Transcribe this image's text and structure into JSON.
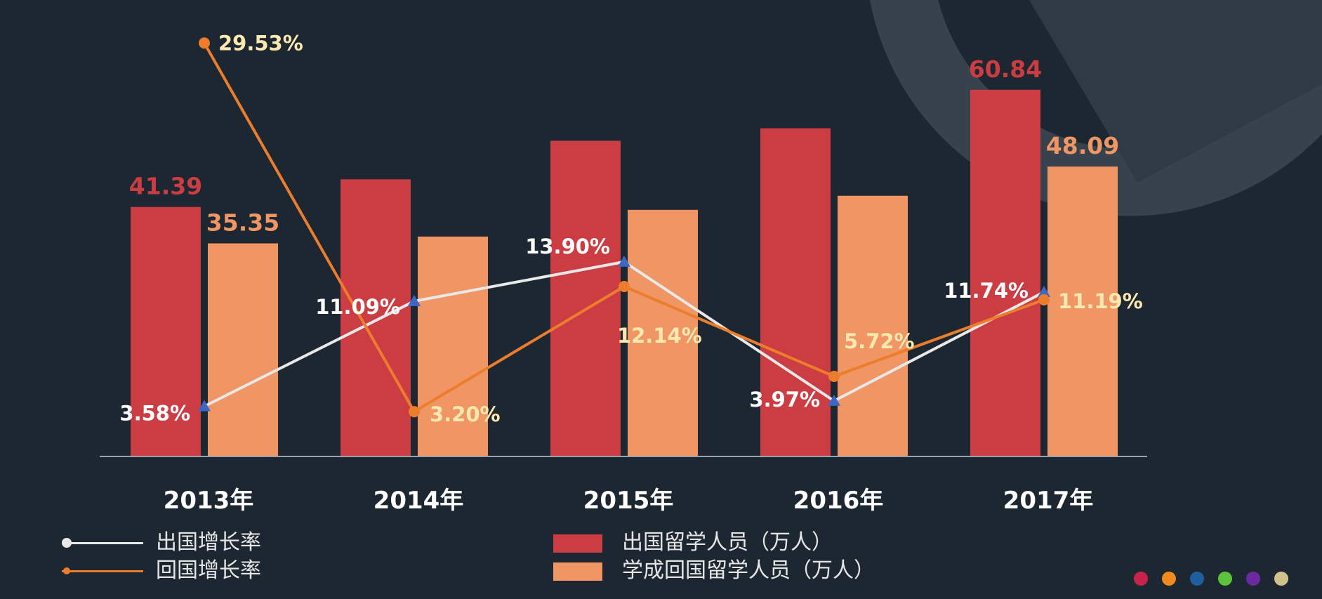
{
  "chart_data": {
    "type": "bar",
    "categories": [
      "2013年",
      "2014年",
      "2015年",
      "2016年",
      "2017年"
    ],
    "series": [
      {
        "name": "出国留学人员（万人）",
        "kind": "bar",
        "color": "#cb3d42",
        "values": [
          41.39,
          45.98,
          52.37,
          54.45,
          60.84
        ],
        "labels": [
          "41.39",
          "",
          "",
          "",
          "60.84"
        ]
      },
      {
        "name": "学成回国留学人员（万人）",
        "kind": "bar",
        "color": "#ef9664",
        "values": [
          35.35,
          36.48,
          40.91,
          43.25,
          48.09
        ],
        "labels": [
          "35.35",
          "",
          "",
          "",
          "48.09"
        ]
      },
      {
        "name": "出国增长率",
        "kind": "line",
        "color": "#e8e8e8",
        "marker_color": "#3a68c4",
        "values": [
          3.58,
          11.09,
          13.9,
          3.97,
          11.74
        ],
        "labels": [
          "3.58%",
          "11.09%",
          "13.90%",
          "3.97%",
          "11.74%"
        ]
      },
      {
        "name": "回国增长率",
        "kind": "line",
        "color": "#ec7d2d",
        "values": [
          29.53,
          3.2,
          12.14,
          5.72,
          11.19
        ],
        "labels": [
          "29.53%",
          "3.20%",
          "12.14%",
          "5.72%",
          "11.19%"
        ]
      }
    ],
    "bar_ylim": [
      0,
      72
    ],
    "line_ylim": [
      0,
      31
    ],
    "grid": false,
    "legend_position": "bottom"
  },
  "legend": {
    "line1": "出国增长率",
    "line2": "回国增长率",
    "bar1": "出国留学人员（万人）",
    "bar2": "学成回国留学人员（万人）"
  },
  "colors": {
    "background": "#1d2731",
    "outbound_bar": "#cb3d42",
    "return_bar": "#ef9664",
    "outbound_line": "#e8e8e8",
    "return_line": "#ec7d2d",
    "triangle_marker": "#3a68c4",
    "outbound_label": "#ffffff",
    "return_label": "#fde8b0"
  },
  "page_dots": [
    "#c9234c",
    "#f08a1e",
    "#1e5fa0",
    "#5cc33c",
    "#6c2aa0",
    "#cfc28a"
  ]
}
